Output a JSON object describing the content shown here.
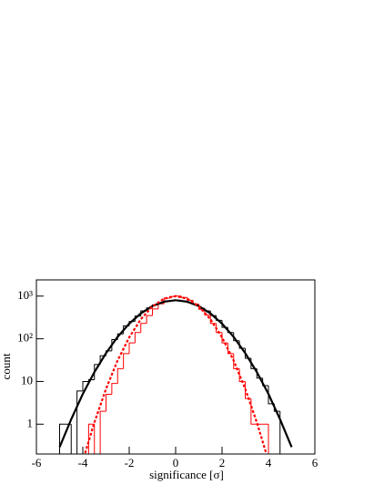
{
  "chart_data": {
    "type": "histogram",
    "xlabel": "significance [σ]",
    "ylabel": "count",
    "xlim": [
      -6,
      6
    ],
    "ylim": [
      0.2,
      2400
    ],
    "log_y": true,
    "xticks": [
      -6,
      -4,
      -2,
      0,
      2,
      4,
      6
    ],
    "yticks": [
      1,
      10,
      {
        "value": 100,
        "label": "10²"
      },
      {
        "value": 1000,
        "label": "10³"
      }
    ],
    "bins": [
      -5,
      -4.75,
      -4.5,
      -4.25,
      -4,
      -3.75,
      -3.5,
      -3.25,
      -3,
      -2.75,
      -2.5,
      -2.25,
      -2,
      -1.75,
      -1.5,
      -1.25,
      -1,
      -0.75,
      -0.5,
      -0.25,
      0,
      0.25,
      0.5,
      0.75,
      1,
      1.25,
      1.5,
      1.75,
      2,
      2.25,
      2.5,
      2.75,
      3,
      3.25,
      3.5,
      3.75,
      4,
      4.25,
      4.5,
      4.75,
      5
    ],
    "series": [
      {
        "color": "#000000",
        "values": [
          1,
          1,
          0,
          6,
          10,
          11,
          25,
          40,
          52,
          96,
          130,
          200,
          255,
          340,
          450,
          530,
          620,
          700,
          770,
          790,
          800,
          760,
          710,
          640,
          520,
          450,
          350,
          270,
          185,
          140,
          90,
          60,
          35,
          20,
          12,
          8,
          3,
          2,
          0,
          0
        ]
      },
      {
        "color": "#ff0000",
        "values": [
          0,
          0,
          0,
          0,
          0,
          1,
          0,
          2,
          5,
          9,
          20,
          45,
          80,
          140,
          230,
          350,
          500,
          660,
          900,
          980,
          1000,
          930,
          800,
          650,
          490,
          360,
          230,
          140,
          80,
          45,
          20,
          10,
          4,
          1,
          1,
          1,
          0,
          0,
          0,
          0
        ]
      }
    ],
    "curves": [
      {
        "color": "#000000",
        "linestyle": "solid",
        "x": [
          -5,
          -4.5,
          -4,
          -3.5,
          -3,
          -2.5,
          -2,
          -1.5,
          -1,
          -0.5,
          0,
          0.5,
          1,
          1.5,
          2,
          2.5,
          3,
          3.5,
          4,
          4.5,
          5
        ],
        "values": [
          0.29,
          1.3,
          5.1,
          16.6,
          46,
          111,
          226,
          393,
          583,
          739,
          800,
          739,
          583,
          393,
          226,
          111,
          46,
          16.6,
          5.1,
          1.3,
          0.29
        ]
      },
      {
        "color": "#ff0000",
        "linestyle": "dashed",
        "x": [
          -3.9,
          -3.5,
          -3,
          -2.5,
          -2,
          -1.5,
          -1,
          -0.5,
          0,
          0.5,
          1,
          1.5,
          2,
          2.5,
          3,
          3.5,
          3.9
        ],
        "values": [
          0.21,
          1.1,
          6.7,
          31,
          108,
          287,
          574,
          870,
          1000,
          870,
          574,
          287,
          108,
          31,
          6.7,
          1.1,
          0.21
        ]
      }
    ]
  }
}
